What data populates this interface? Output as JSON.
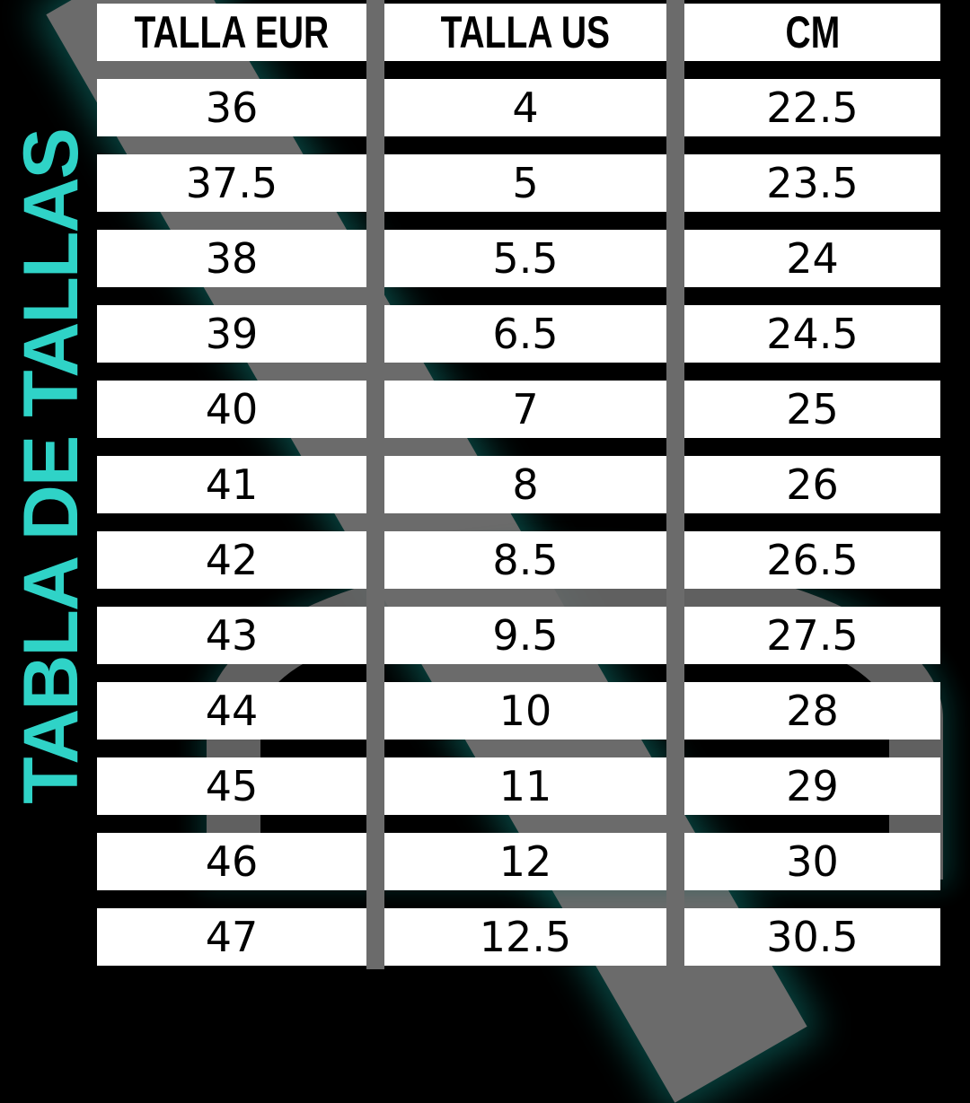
{
  "title": "TABLA DE TALLAS",
  "accent_color": "#2fd3c7",
  "headers": [
    "TALLA EUR",
    "TALLA US",
    "CM"
  ],
  "rows": [
    [
      "36",
      "4",
      "22.5"
    ],
    [
      "37.5",
      "5",
      "23.5"
    ],
    [
      "38",
      "5.5",
      "24"
    ],
    [
      "39",
      "6.5",
      "24.5"
    ],
    [
      "40",
      "7",
      "25"
    ],
    [
      "41",
      "8",
      "26"
    ],
    [
      "42",
      "8.5",
      "26.5"
    ],
    [
      "43",
      "9.5",
      "27.5"
    ],
    [
      "44",
      "10",
      "28"
    ],
    [
      "45",
      "11",
      "29"
    ],
    [
      "46",
      "12",
      "30"
    ],
    [
      "47",
      "12.5",
      "30.5"
    ]
  ]
}
